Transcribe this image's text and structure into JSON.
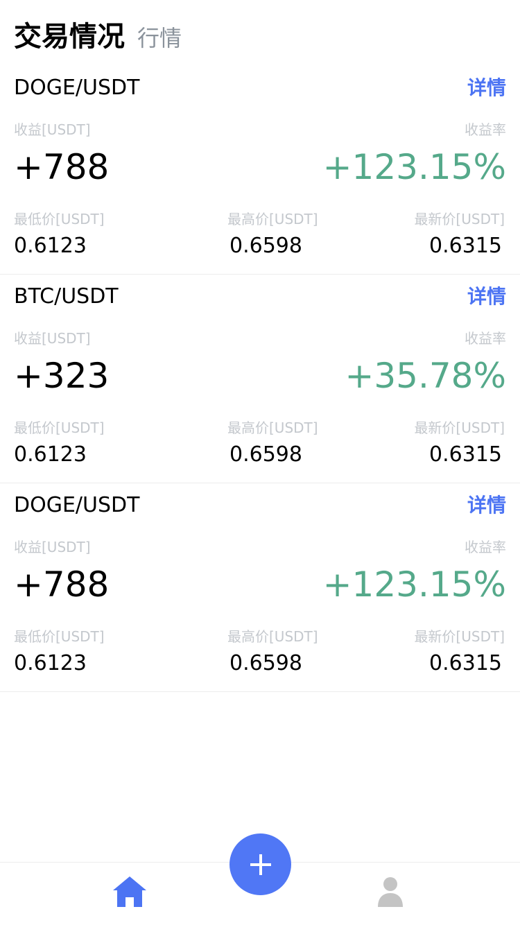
{
  "header": {
    "title": "交易情况",
    "subtitle": "行情"
  },
  "cards": [
    {
      "pair": "DOGE/USDT",
      "detail_label": "详情",
      "profit_label": "收益[USDT]",
      "profit_value": "+788",
      "rate_label": "收益率",
      "rate_value": "+123.15%",
      "low_label": "最低价[USDT]",
      "low_value": "0.6123",
      "high_label": "最高价[USDT]",
      "high_value": "0.6598",
      "latest_label": "最新价[USDT]",
      "latest_value": "0.6315"
    },
    {
      "pair": "BTC/USDT",
      "detail_label": "详情",
      "profit_label": "收益[USDT]",
      "profit_value": "+323",
      "rate_label": "收益率",
      "rate_value": "+35.78%",
      "low_label": "最低价[USDT]",
      "low_value": "0.6123",
      "high_label": "最高价[USDT]",
      "high_value": "0.6598",
      "latest_label": "最新价[USDT]",
      "latest_value": "0.6315"
    },
    {
      "pair": "DOGE/USDT",
      "detail_label": "详情",
      "profit_label": "收益[USDT]",
      "profit_value": "+788",
      "rate_label": "收益率",
      "rate_value": "+123.15%",
      "low_label": "最低价[USDT]",
      "low_value": "0.6123",
      "high_label": "最高价[USDT]",
      "high_value": "0.6598",
      "latest_label": "最新价[USDT]",
      "latest_value": "0.6315"
    }
  ],
  "tabbar": {
    "home_icon": "home-icon",
    "add_icon": "plus-icon",
    "profile_icon": "user-icon"
  },
  "colors": {
    "accent": "#4c74f3",
    "positive": "#55a98a",
    "muted_label": "#c4c8cd",
    "fab": "#5077f5",
    "profile_icon": "#c4c4c4"
  }
}
